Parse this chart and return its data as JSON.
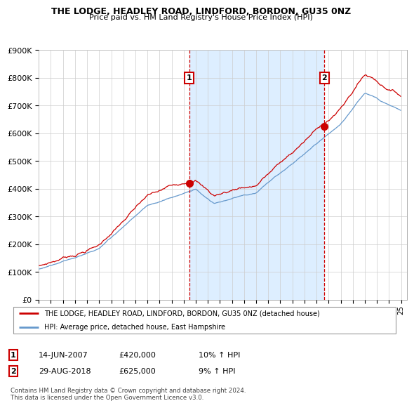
{
  "title": "THE LODGE, HEADLEY ROAD, LINDFORD, BORDON, GU35 0NZ",
  "subtitle": "Price paid vs. HM Land Registry's House Price Index (HPI)",
  "ylim": [
    0,
    900000
  ],
  "yticks": [
    0,
    100000,
    200000,
    300000,
    400000,
    500000,
    600000,
    700000,
    800000,
    900000
  ],
  "ytick_labels": [
    "£0",
    "£100K",
    "£200K",
    "£300K",
    "£400K",
    "£500K",
    "£600K",
    "£700K",
    "£800K",
    "£900K"
  ],
  "sale1_x": 2007.4493,
  "sale1_y": 420000,
  "sale2_x": 2018.6603,
  "sale2_y": 625000,
  "legend_line1": "THE LODGE, HEADLEY ROAD, LINDFORD, BORDON, GU35 0NZ (detached house)",
  "legend_line2": "HPI: Average price, detached house, East Hampshire",
  "footer": "Contains HM Land Registry data © Crown copyright and database right 2024.\nThis data is licensed under the Open Government Licence v3.0.",
  "ann1_label": "1",
  "ann1_date": "14-JUN-2007",
  "ann1_price": "£420,000",
  "ann1_hpi": "10% ↑ HPI",
  "ann2_label": "2",
  "ann2_date": "29-AUG-2018",
  "ann2_price": "£625,000",
  "ann2_hpi": "9% ↑ HPI",
  "line_color_property": "#cc0000",
  "line_color_hpi": "#6699cc",
  "shade_color": "#ddeeff",
  "vline_color": "#cc0000",
  "grid_color": "#cccccc",
  "xlim_left": 1995.0,
  "xlim_right": 2025.5
}
